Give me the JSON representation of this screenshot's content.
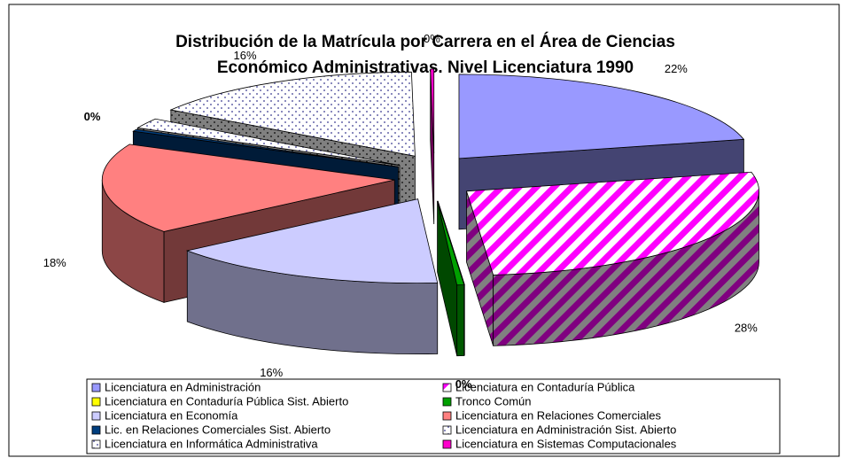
{
  "chart_data": {
    "type": "pie3d",
    "title": [
      "Distribución de la Matrícula por Carrera en el Área de Ciencias",
      "Económico Administrativas. Nivel Licenciatura 1990"
    ],
    "categories": [
      "Licenciatura en Administración",
      "Licenciatura en Contaduría Pública",
      "Licenciatura en Contaduría Pública Sist. Abierto",
      "Tronco Común",
      "Licenciatura en Economía",
      "Licenciatura en Relaciones Comerciales",
      "Lic. en Relaciones Comerciales Sist. Abierto",
      "Licenciatura en Administración Sist. Abierto",
      "Licenciatura en Informática Administrativa",
      "Licenciatura en Sistemas Computacionales"
    ],
    "values": [
      22,
      28,
      0,
      0.4,
      16,
      18,
      0.4,
      2,
      16,
      0.2
    ],
    "value_labels": [
      "22%",
      "28%",
      null,
      "0%",
      "16%",
      "18%",
      "0%",
      null,
      "16%",
      "0%"
    ],
    "colors": [
      "#9999ff",
      "#ff00ff",
      "#ffff00",
      "#00a000",
      "#ccccff",
      "#ff8080",
      "#003e7e",
      "#a0a0a0",
      "#ffffff",
      "#ff00cc"
    ],
    "patterns": [
      null,
      "stripes",
      null,
      null,
      null,
      null,
      null,
      "dots",
      "dots",
      null
    ],
    "legend": "bottom"
  }
}
